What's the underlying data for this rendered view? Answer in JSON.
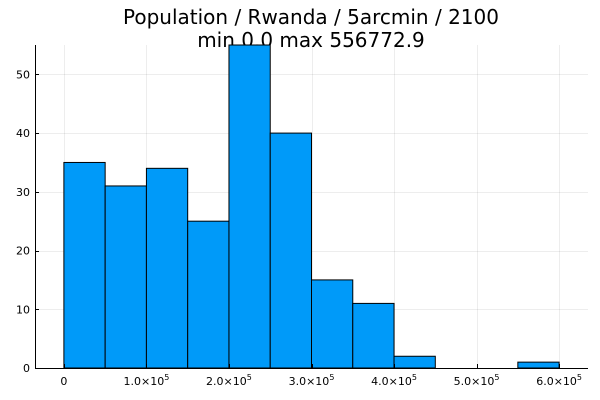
{
  "chart_data": {
    "type": "bar",
    "title_line1": "Population / Rwanda / 5arcmin / 2100",
    "title_line2": "min 0.0  max 556772.9",
    "bin_width": 50000,
    "bins": [
      {
        "start": 0,
        "end": 50000,
        "count": 35
      },
      {
        "start": 50000,
        "end": 100000,
        "count": 31
      },
      {
        "start": 100000,
        "end": 150000,
        "count": 34
      },
      {
        "start": 150000,
        "end": 200000,
        "count": 25
      },
      {
        "start": 200000,
        "end": 250000,
        "count": 55
      },
      {
        "start": 250000,
        "end": 300000,
        "count": 40
      },
      {
        "start": 300000,
        "end": 350000,
        "count": 15
      },
      {
        "start": 350000,
        "end": 400000,
        "count": 11
      },
      {
        "start": 400000,
        "end": 450000,
        "count": 2
      },
      {
        "start": 450000,
        "end": 500000,
        "count": 0
      },
      {
        "start": 500000,
        "end": 550000,
        "count": 0
      },
      {
        "start": 550000,
        "end": 600000,
        "count": 1
      }
    ],
    "xlim": [
      -35000,
      635000
    ],
    "ylim": [
      0,
      55
    ],
    "x_ticks": [
      {
        "value": 0,
        "mantissa": "0",
        "exponent": ""
      },
      {
        "value": 100000,
        "mantissa": "1.0×10",
        "exponent": "5"
      },
      {
        "value": 200000,
        "mantissa": "2.0×10",
        "exponent": "5"
      },
      {
        "value": 300000,
        "mantissa": "3.0×10",
        "exponent": "5"
      },
      {
        "value": 400000,
        "mantissa": "4.0×10",
        "exponent": "5"
      },
      {
        "value": 500000,
        "mantissa": "5.0×10",
        "exponent": "5"
      },
      {
        "value": 600000,
        "mantissa": "6.0×10",
        "exponent": "5"
      }
    ],
    "y_ticks": [
      0,
      10,
      20,
      30,
      40,
      50
    ],
    "bar_color": "#009AF9",
    "grid": true,
    "legend": false
  }
}
